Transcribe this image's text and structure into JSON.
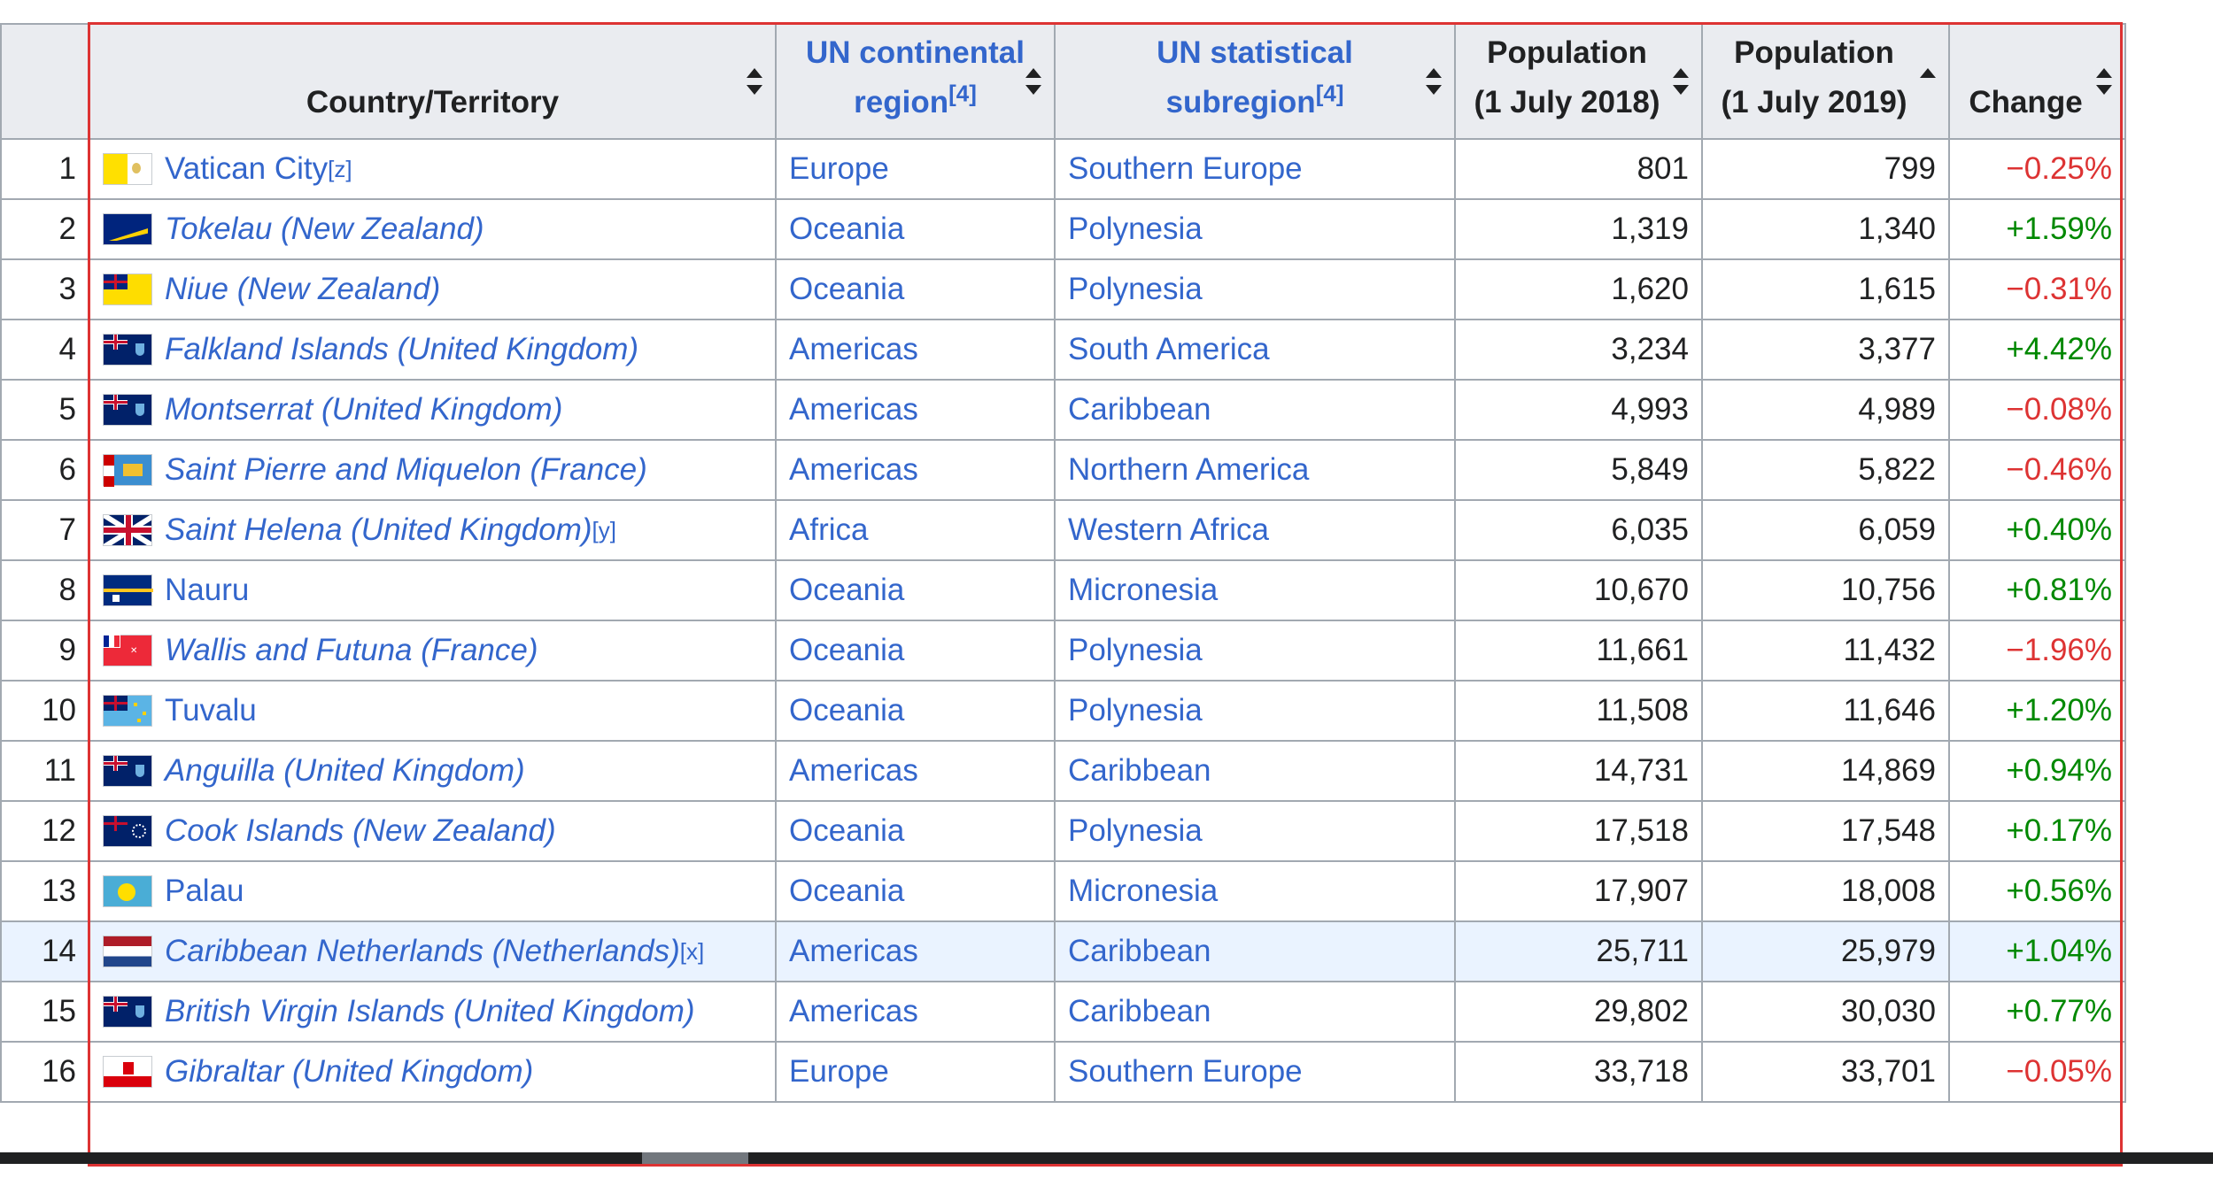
{
  "headers": {
    "country": "Country/Territory",
    "region_line1": "UN continental",
    "region_line2": "region",
    "region_ref": "[4]",
    "subregion_line1": "UN statistical",
    "subregion_line2": "subregion",
    "subregion_ref": "[4]",
    "pop2018_line1": "Population",
    "pop2018_line2": "(1 July 2018)",
    "pop2019_line1": "Population",
    "pop2019_line2": "(1 July 2019)",
    "change": "Change"
  },
  "rows": [
    {
      "rank": "1",
      "name": "Vatican City",
      "parent": "",
      "ref": "[z]",
      "italic": false,
      "flag": "vatican-flag",
      "region": "Europe",
      "subregion": "Southern Europe",
      "pop2018": "801",
      "pop2019": "799",
      "change": "−0.25%",
      "trend": "neg"
    },
    {
      "rank": "2",
      "name": "Tokelau",
      "parent": "(New Zealand)",
      "ref": "",
      "italic": true,
      "flag": "tokelau-flag",
      "region": "Oceania",
      "subregion": "Polynesia",
      "pop2018": "1,319",
      "pop2019": "1,340",
      "change": "+1.59%",
      "trend": "pos"
    },
    {
      "rank": "3",
      "name": "Niue",
      "parent": "(New Zealand)",
      "ref": "",
      "italic": true,
      "flag": "niue-flag",
      "region": "Oceania",
      "subregion": "Polynesia",
      "pop2018": "1,620",
      "pop2019": "1,615",
      "change": "−0.31%",
      "trend": "neg"
    },
    {
      "rank": "4",
      "name": "Falkland Islands",
      "parent": "(United Kingdom)",
      "ref": "",
      "italic": true,
      "flag": "falkland-islands-flag",
      "region": "Americas",
      "subregion": "South America",
      "pop2018": "3,234",
      "pop2019": "3,377",
      "change": "+4.42%",
      "trend": "pos"
    },
    {
      "rank": "5",
      "name": "Montserrat",
      "parent": "(United Kingdom)",
      "ref": "",
      "italic": true,
      "flag": "montserrat-flag",
      "region": "Americas",
      "subregion": "Caribbean",
      "pop2018": "4,993",
      "pop2019": "4,989",
      "change": "−0.08%",
      "trend": "neg"
    },
    {
      "rank": "6",
      "name": "Saint Pierre and Miquelon",
      "parent": "(France)",
      "ref": "",
      "italic": true,
      "flag": "saint-pierre-miquelon-flag",
      "region": "Americas",
      "subregion": "Northern America",
      "pop2018": "5,849",
      "pop2019": "5,822",
      "change": "−0.46%",
      "trend": "neg"
    },
    {
      "rank": "7",
      "name": "Saint Helena",
      "parent": "(United Kingdom)",
      "ref": "[y]",
      "italic": true,
      "flag": "saint-helena-flag",
      "region": "Africa",
      "subregion": "Western Africa",
      "pop2018": "6,035",
      "pop2019": "6,059",
      "change": "+0.40%",
      "trend": "pos"
    },
    {
      "rank": "8",
      "name": "Nauru",
      "parent": "",
      "ref": "",
      "italic": false,
      "flag": "nauru-flag",
      "region": "Oceania",
      "subregion": "Micronesia",
      "pop2018": "10,670",
      "pop2019": "10,756",
      "change": "+0.81%",
      "trend": "pos"
    },
    {
      "rank": "9",
      "name": "Wallis and Futuna",
      "parent": "(France)",
      "ref": "",
      "italic": true,
      "flag": "wallis-futuna-flag",
      "region": "Oceania",
      "subregion": "Polynesia",
      "pop2018": "11,661",
      "pop2019": "11,432",
      "change": "−1.96%",
      "trend": "neg"
    },
    {
      "rank": "10",
      "name": "Tuvalu",
      "parent": "",
      "ref": "",
      "italic": false,
      "flag": "tuvalu-flag",
      "region": "Oceania",
      "subregion": "Polynesia",
      "pop2018": "11,508",
      "pop2019": "11,646",
      "change": "+1.20%",
      "trend": "pos"
    },
    {
      "rank": "11",
      "name": "Anguilla",
      "parent": "(United Kingdom)",
      "ref": "",
      "italic": true,
      "flag": "anguilla-flag",
      "region": "Americas",
      "subregion": "Caribbean",
      "pop2018": "14,731",
      "pop2019": "14,869",
      "change": "+0.94%",
      "trend": "pos"
    },
    {
      "rank": "12",
      "name": "Cook Islands",
      "parent": "(New Zealand)",
      "ref": "",
      "italic": true,
      "flag": "cook-islands-flag",
      "region": "Oceania",
      "subregion": "Polynesia",
      "pop2018": "17,518",
      "pop2019": "17,548",
      "change": "+0.17%",
      "trend": "pos"
    },
    {
      "rank": "13",
      "name": "Palau",
      "parent": "",
      "ref": "",
      "italic": false,
      "flag": "palau-flag",
      "region": "Oceania",
      "subregion": "Micronesia",
      "pop2018": "17,907",
      "pop2019": "18,008",
      "change": "+0.56%",
      "trend": "pos"
    },
    {
      "rank": "14",
      "name": "Caribbean Netherlands",
      "parent": "(Netherlands)",
      "ref": "[x]",
      "italic": true,
      "flag": "caribbean-netherlands-flag",
      "region": "Americas",
      "subregion": "Caribbean",
      "pop2018": "25,711",
      "pop2019": "25,979",
      "change": "+1.04%",
      "trend": "pos",
      "highlight": true
    },
    {
      "rank": "15",
      "name": "British Virgin Islands",
      "parent": "(United Kingdom)",
      "ref": "",
      "italic": true,
      "flag": "british-virgin-islands-flag",
      "region": "Americas",
      "subregion": "Caribbean",
      "pop2018": "29,802",
      "pop2019": "30,030",
      "change": "+0.77%",
      "trend": "pos"
    },
    {
      "rank": "16",
      "name": "Gibraltar",
      "parent": "(United Kingdom)",
      "ref": "",
      "italic": true,
      "flag": "gibraltar-flag",
      "region": "Europe",
      "subregion": "Southern Europe",
      "pop2018": "33,718",
      "pop2019": "33,701",
      "change": "−0.05%",
      "trend": "neg"
    }
  ],
  "colors": {
    "link": "#3366cc",
    "positive": "#008800",
    "negative": "#dd3333",
    "header_bg": "#eaecf0",
    "highlight_bg": "#eaf3ff",
    "selection_border": "#dd3333"
  }
}
